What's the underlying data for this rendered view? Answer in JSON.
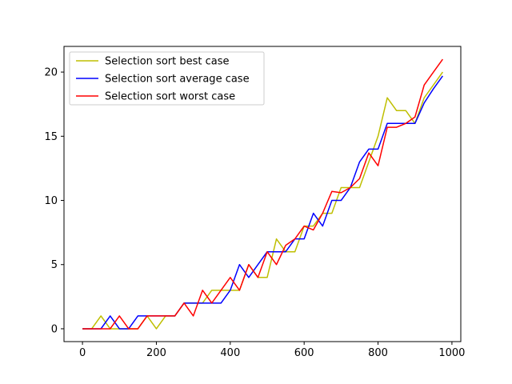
{
  "chart_data": {
    "type": "line",
    "title": "",
    "xlabel": "",
    "ylabel": "",
    "xlim": [
      -50,
      1024
    ],
    "ylim": [
      -1,
      22
    ],
    "xticks": [
      0,
      200,
      400,
      600,
      800,
      1000
    ],
    "yticks": [
      0,
      5,
      10,
      15,
      20
    ],
    "grid": false,
    "legend_position": "top-left",
    "x": [
      0,
      25,
      50,
      75,
      100,
      125,
      150,
      175,
      200,
      225,
      250,
      275,
      300,
      325,
      350,
      375,
      400,
      425,
      450,
      475,
      500,
      525,
      550,
      575,
      600,
      625,
      650,
      675,
      700,
      725,
      750,
      775,
      800,
      825,
      850,
      875,
      900,
      925,
      950,
      975
    ],
    "series": [
      {
        "name": "Selection sort best case",
        "color": "#bfbf00",
        "values": [
          0,
          0,
          1,
          0,
          0,
          0,
          0,
          1,
          0,
          1,
          1,
          2,
          2,
          2,
          3,
          3,
          3,
          3,
          5,
          4,
          4,
          7,
          6,
          6,
          8,
          8,
          9,
          9,
          11,
          11,
          11,
          13,
          15,
          18,
          17,
          17,
          16,
          18,
          19,
          20
        ]
      },
      {
        "name": "Selection sort average case",
        "color": "#0000ff",
        "values": [
          0,
          0,
          0,
          1,
          0,
          0,
          1,
          1,
          1,
          1,
          1,
          2,
          2,
          2,
          2,
          2,
          3,
          5,
          4,
          5,
          6,
          6,
          6,
          7,
          7,
          9,
          8,
          10,
          10,
          11,
          13,
          14,
          14,
          16,
          16,
          16,
          16,
          17.6,
          18.7,
          19.7
        ]
      },
      {
        "name": "Selection sort worst case",
        "color": "#ff0000",
        "values": [
          0,
          0,
          0,
          0,
          1,
          0,
          0,
          1,
          1,
          1,
          1,
          2,
          1,
          3,
          2,
          3,
          4,
          3,
          5,
          4,
          6,
          5,
          6.5,
          7,
          8,
          7.7,
          9,
          10.7,
          10.6,
          11,
          11.7,
          13.7,
          12.7,
          15.7,
          15.7,
          16,
          16.5,
          19,
          20,
          21
        ]
      }
    ]
  }
}
